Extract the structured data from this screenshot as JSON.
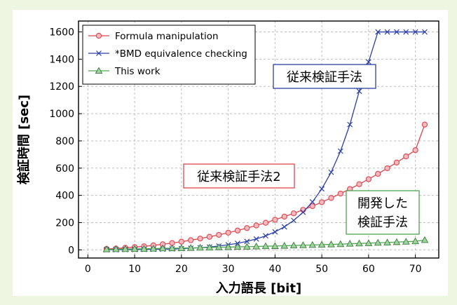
{
  "background_color": "#eef5e1",
  "chart_data": {
    "type": "line",
    "title": "",
    "xlabel": "入力語長 [bit]",
    "ylabel": "検証時間 [sec]",
    "xlim": [
      -2,
      75
    ],
    "ylim": [
      -60,
      1680
    ],
    "xticks": [
      0,
      10,
      20,
      30,
      40,
      50,
      60,
      70
    ],
    "yticks": [
      0,
      200,
      400,
      600,
      800,
      1000,
      1200,
      1400,
      1600
    ],
    "grid": true,
    "legend_position": "top-left",
    "x": [
      4,
      6,
      8,
      10,
      12,
      14,
      16,
      18,
      20,
      22,
      24,
      26,
      28,
      30,
      32,
      34,
      36,
      38,
      40,
      42,
      44,
      46,
      48,
      50,
      52,
      54,
      56,
      58,
      60,
      62,
      64,
      66,
      68,
      70,
      72
    ],
    "series": [
      {
        "name": "Formula manipulation",
        "color": "#e0454f",
        "marker": "circle",
        "values": [
          7,
          10,
          15,
          20,
          26,
          33,
          41,
          50,
          60,
          71,
          83,
          96,
          110,
          126,
          142,
          160,
          179,
          199,
          221,
          244,
          268,
          294,
          321,
          350,
          381,
          413,
          447,
          482,
          519,
          558,
          599,
          641,
          686,
          732,
          920
        ]
      },
      {
        "name": "*BMD equivalence checking",
        "color": "#2b3fa8",
        "marker": "x",
        "values": [
          1,
          1,
          2,
          2,
          3,
          4,
          5,
          7,
          9,
          12,
          16,
          21,
          28,
          37,
          48,
          62,
          80,
          103,
          132,
          169,
          216,
          276,
          352,
          448,
          570,
          725,
          920,
          1165,
          1380,
          1600,
          1600,
          1600,
          1600,
          1600,
          1600
        ]
      },
      {
        "name": "This work",
        "color": "#4ea64e",
        "marker": "triangle",
        "values": [
          4,
          5,
          6,
          7,
          8,
          9,
          11,
          12,
          13,
          14,
          16,
          17,
          19,
          20,
          22,
          23,
          25,
          27,
          28,
          30,
          32,
          34,
          36,
          38,
          40,
          42,
          45,
          47,
          49,
          52,
          54,
          57,
          60,
          63,
          72
        ]
      }
    ],
    "annotations": [
      {
        "id": "conventional",
        "lines": [
          "従来検証手法"
        ],
        "color": "#2b3fa8"
      },
      {
        "id": "conventional2",
        "lines": [
          "従来検証手法2"
        ],
        "color": "#e0454f"
      },
      {
        "id": "proposed",
        "lines": [
          "開発した",
          "検証手法"
        ],
        "color": "#4ea64e"
      }
    ]
  }
}
